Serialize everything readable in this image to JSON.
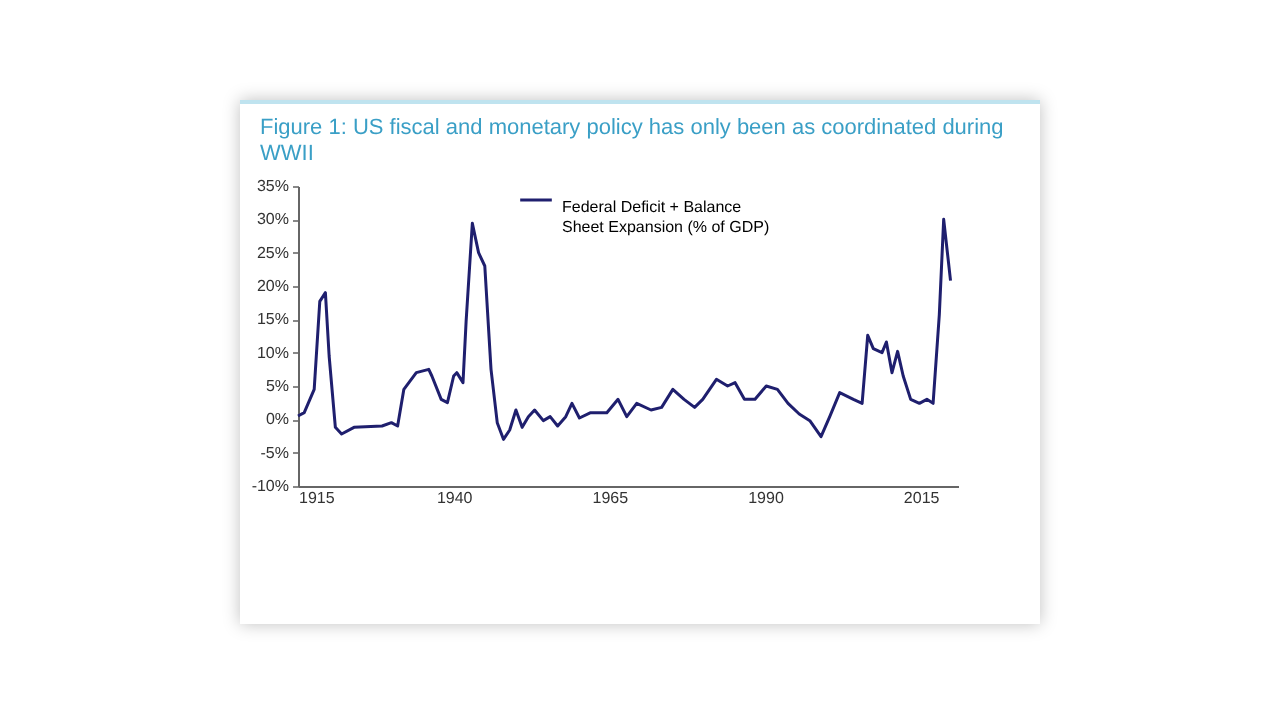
{
  "chart_data": {
    "type": "line",
    "title": "Figure 1: US fiscal and monetary policy has only been as coordinated during WWII",
    "xlim": [
      1915,
      2021
    ],
    "xticks": [
      1915,
      1940,
      1965,
      1990,
      2015
    ],
    "ylim": [
      -10,
      35
    ],
    "yticks": [
      {
        "value": -10,
        "label": "-10%"
      },
      {
        "value": -5,
        "label": "-5%"
      },
      {
        "value": 0,
        "label": "0%"
      },
      {
        "value": 5,
        "label": "5%"
      },
      {
        "value": 10,
        "label": "10%"
      },
      {
        "value": 15,
        "label": "15%"
      },
      {
        "value": 20,
        "label": "20%"
      },
      {
        "value": 25,
        "label": "25%"
      },
      {
        "value": 30,
        "label": "30%"
      },
      {
        "value": 35,
        "label": "35%"
      }
    ],
    "grid": false,
    "legend": "top",
    "marker": "none",
    "line_style": "solid",
    "x": [
      1915,
      1916,
      1917.6,
      1918.5,
      1919.4,
      1920,
      1921,
      1922,
      1924,
      1928.5,
      1930,
      1931,
      1932,
      1934,
      1936,
      1936.5,
      1938,
      1939,
      1940,
      1940.5,
      1941.5,
      1942,
      1943,
      1944,
      1945,
      1946,
      1947,
      1948,
      1949,
      1950,
      1951,
      1952,
      1953,
      1954.4,
      1955.5,
      1956.7,
      1958,
      1959,
      1960.2,
      1962,
      1964.6,
      1966.4,
      1967.8,
      1969.4,
      1971.7,
      1973.4,
      1975.2,
      1977,
      1978.7,
      1980,
      1982.2,
      1984,
      1985.2,
      1986.7,
      1988.4,
      1990.2,
      1992,
      1993.7,
      1995.5,
      1997.2,
      1999,
      2000.4,
      2002,
      2004.2,
      2005.6,
      2006.5,
      2007.4,
      2008.8,
      2009.5,
      2010.4,
      2011.3,
      2012.2,
      2013.4,
      2014.8,
      2016,
      2017,
      2018,
      2018.7,
      2019.8
    ],
    "series": [
      {
        "name": "Federal Deficit + Balance Sheet Expansion (% of GDP)",
        "color": "#1f1f6e",
        "values": [
          0.5,
          1,
          4.5,
          17.7,
          19,
          9.5,
          -1.2,
          -2.2,
          -1.2,
          -1,
          -0.5,
          -1,
          4.5,
          7,
          7.5,
          6.5,
          3,
          2.5,
          6.5,
          7,
          5.5,
          14.7,
          29.4,
          25,
          23,
          7.5,
          -0.5,
          -3,
          -1.6,
          1.4,
          -1.2,
          0.4,
          1.4,
          -0.2,
          0.4,
          -1,
          0.4,
          2.4,
          0.2,
          1,
          1,
          3,
          0.4,
          2.4,
          1.4,
          1.8,
          4.5,
          3,
          1.8,
          3,
          6,
          5,
          5.5,
          3,
          3,
          5,
          4.5,
          2.4,
          0.8,
          -0.2,
          -2.6,
          0.4,
          4,
          3,
          2.4,
          12.6,
          10.6,
          10,
          11.6,
          7,
          10.2,
          6.5,
          3,
          2.4,
          3,
          2.4,
          15.7,
          30,
          20.8
        ]
      }
    ]
  }
}
